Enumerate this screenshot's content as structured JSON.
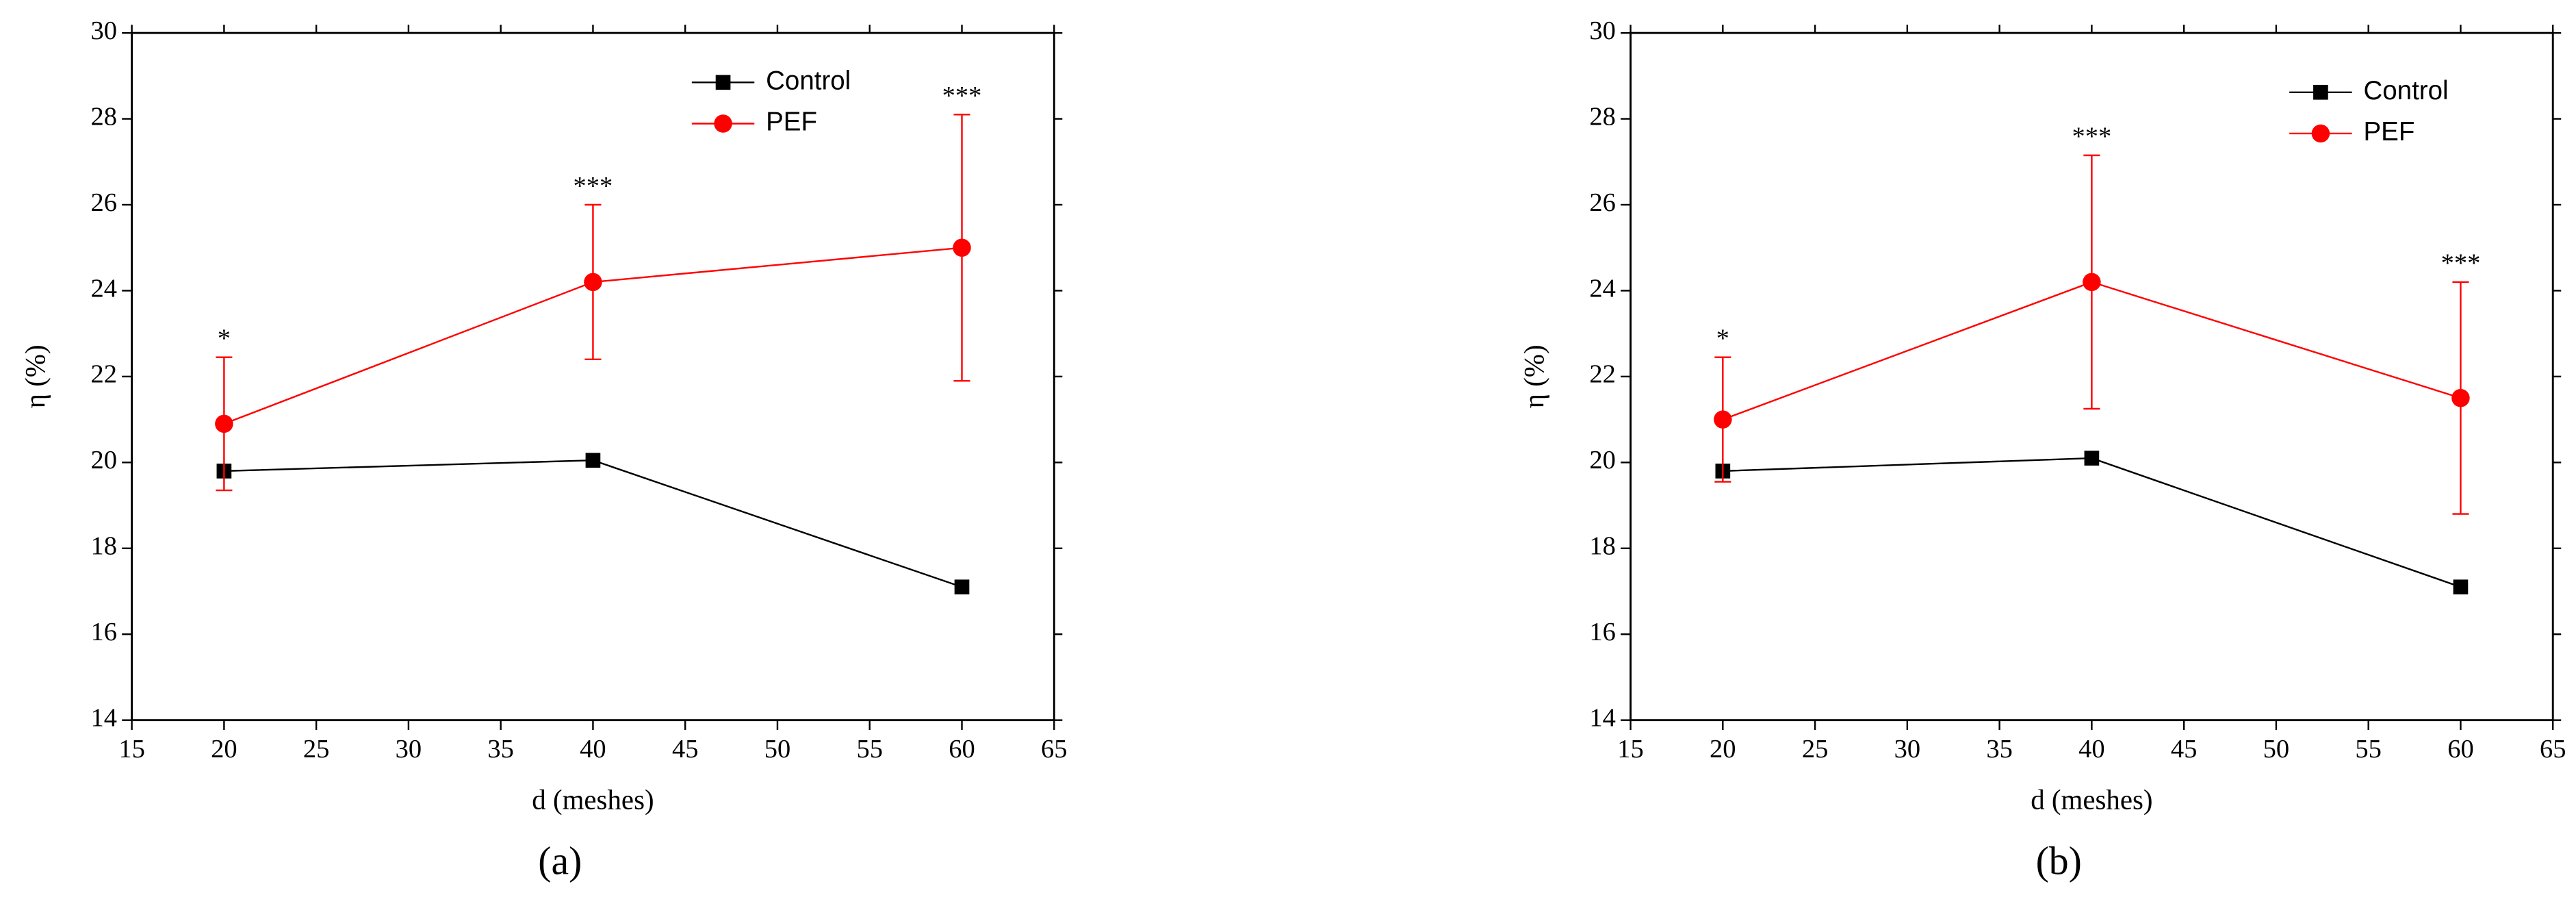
{
  "chart_data": [
    {
      "type": "line",
      "xlabel": "d (meshes)",
      "ylabel": "η (%)",
      "panel_label": "(a)",
      "x": [
        20,
        40,
        60
      ],
      "xlim": [
        15,
        65
      ],
      "xticks": [
        15,
        20,
        25,
        30,
        35,
        40,
        45,
        50,
        55,
        60,
        65
      ],
      "ylim": [
        14,
        30
      ],
      "yticks": [
        14,
        16,
        18,
        20,
        22,
        24,
        26,
        28,
        30
      ],
      "series": [
        {
          "name": "Control",
          "color": "#000000",
          "marker": "square",
          "values": [
            19.8,
            20.05,
            17.1
          ]
        },
        {
          "name": "PEF",
          "color": "#ff0000",
          "marker": "circle",
          "values": [
            20.9,
            24.2,
            25.0
          ],
          "error": [
            1.55,
            1.8,
            3.1
          ]
        }
      ],
      "annotations": [
        "*",
        "***",
        "***"
      ],
      "legend": "upper right"
    },
    {
      "type": "line",
      "xlabel": "d (meshes)",
      "ylabel": "η (%)",
      "panel_label": "(b)",
      "x": [
        20,
        40,
        60
      ],
      "xlim": [
        15,
        65
      ],
      "xticks": [
        15,
        20,
        25,
        30,
        35,
        40,
        45,
        50,
        55,
        60,
        65
      ],
      "ylim": [
        14,
        30
      ],
      "yticks": [
        14,
        16,
        18,
        20,
        22,
        24,
        26,
        28,
        30
      ],
      "series": [
        {
          "name": "Control",
          "color": "#000000",
          "marker": "square",
          "values": [
            19.8,
            20.1,
            17.1
          ]
        },
        {
          "name": "PEF",
          "color": "#ff0000",
          "marker": "circle",
          "values": [
            21.0,
            24.2,
            21.5
          ],
          "error": [
            1.45,
            2.95,
            2.7
          ]
        }
      ],
      "annotations": [
        "*",
        "***",
        "***"
      ],
      "legend": "upper right"
    }
  ]
}
